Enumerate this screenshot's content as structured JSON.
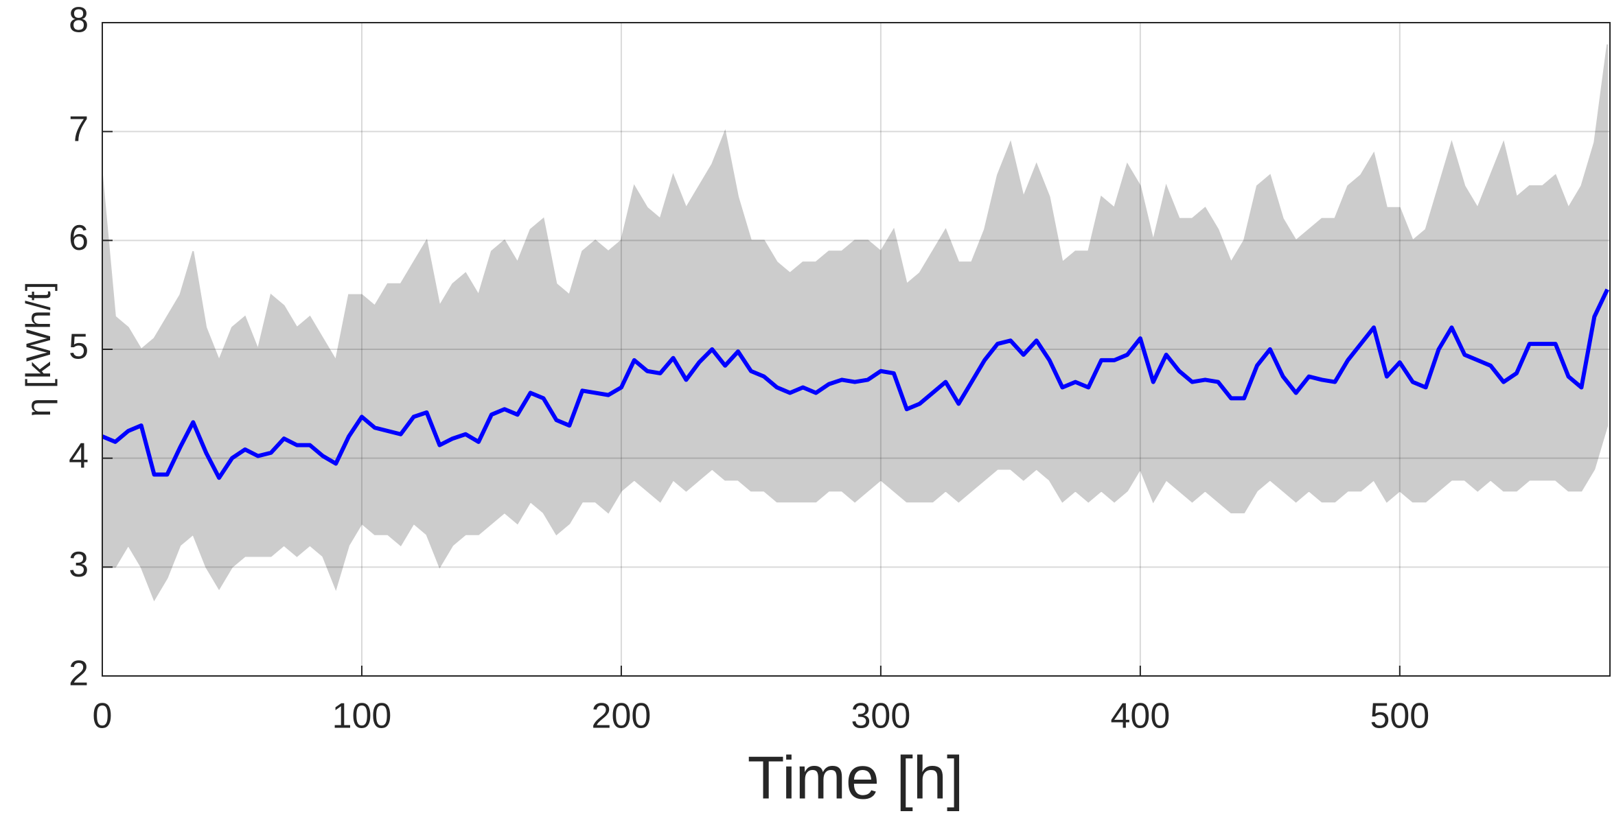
{
  "chart_data": {
    "type": "line",
    "xlabel": "Time [h]",
    "ylabel": "η [kWh/t]",
    "xlim": [
      0,
      581
    ],
    "ylim": [
      2,
      8
    ],
    "xticks": [
      0,
      100,
      200,
      300,
      400,
      500
    ],
    "yticks": [
      2,
      3,
      4,
      5,
      6,
      7,
      8
    ],
    "grid": true,
    "x": [
      0,
      5,
      10,
      15,
      20,
      25,
      30,
      35,
      40,
      45,
      50,
      55,
      60,
      65,
      70,
      75,
      80,
      85,
      90,
      95,
      100,
      105,
      110,
      115,
      120,
      125,
      130,
      135,
      140,
      145,
      150,
      155,
      160,
      165,
      170,
      175,
      180,
      185,
      190,
      195,
      200,
      205,
      210,
      215,
      220,
      225,
      230,
      235,
      240,
      245,
      250,
      255,
      260,
      265,
      270,
      275,
      280,
      285,
      290,
      295,
      300,
      305,
      310,
      315,
      320,
      325,
      330,
      335,
      340,
      345,
      350,
      355,
      360,
      365,
      370,
      375,
      380,
      385,
      390,
      395,
      400,
      405,
      410,
      415,
      420,
      425,
      430,
      435,
      440,
      445,
      450,
      455,
      460,
      465,
      470,
      475,
      480,
      485,
      490,
      495,
      500,
      505,
      510,
      515,
      520,
      525,
      530,
      535,
      540,
      545,
      550,
      555,
      560,
      565,
      570,
      575,
      580
    ],
    "band": {
      "color": "#cccccc",
      "upper": [
        6.6,
        5.3,
        5.2,
        5.0,
        5.1,
        5.3,
        5.5,
        5.9,
        5.2,
        4.9,
        5.2,
        5.3,
        5.0,
        5.5,
        5.4,
        5.2,
        5.3,
        5.1,
        4.9,
        5.5,
        5.5,
        5.4,
        5.6,
        5.6,
        5.8,
        6.0,
        5.4,
        5.6,
        5.7,
        5.5,
        5.9,
        6.0,
        5.8,
        6.1,
        6.2,
        5.6,
        5.5,
        5.9,
        6.0,
        5.9,
        6.0,
        6.5,
        6.3,
        6.2,
        6.6,
        6.3,
        6.5,
        6.7,
        7.0,
        6.4,
        6.0,
        6.0,
        5.8,
        5.7,
        5.8,
        5.8,
        5.9,
        5.9,
        6.0,
        6.0,
        5.9,
        6.1,
        5.6,
        5.7,
        5.9,
        6.1,
        5.8,
        5.8,
        6.1,
        6.6,
        6.9,
        6.4,
        6.7,
        6.4,
        5.8,
        5.9,
        5.9,
        6.4,
        6.3,
        6.7,
        6.5,
        6.0,
        6.5,
        6.2,
        6.2,
        6.3,
        6.1,
        5.8,
        6.0,
        6.5,
        6.6,
        6.2,
        6.0,
        6.1,
        6.2,
        6.2,
        6.5,
        6.6,
        6.8,
        6.3,
        6.3,
        6.0,
        6.1,
        6.5,
        6.9,
        6.5,
        6.3,
        6.6,
        6.9,
        6.4,
        6.5,
        6.5,
        6.6,
        6.3,
        6.5,
        6.9,
        7.8
      ],
      "lower": [
        3.0,
        3.0,
        3.2,
        3.0,
        2.7,
        2.9,
        3.2,
        3.3,
        3.0,
        2.8,
        3.0,
        3.1,
        3.1,
        3.1,
        3.2,
        3.1,
        3.2,
        3.1,
        2.8,
        3.2,
        3.4,
        3.3,
        3.3,
        3.2,
        3.4,
        3.3,
        3.0,
        3.2,
        3.3,
        3.3,
        3.4,
        3.5,
        3.4,
        3.6,
        3.5,
        3.3,
        3.4,
        3.6,
        3.6,
        3.5,
        3.7,
        3.8,
        3.7,
        3.6,
        3.8,
        3.7,
        3.8,
        3.9,
        3.8,
        3.8,
        3.7,
        3.7,
        3.6,
        3.6,
        3.6,
        3.6,
        3.7,
        3.7,
        3.6,
        3.7,
        3.8,
        3.7,
        3.6,
        3.6,
        3.6,
        3.7,
        3.6,
        3.7,
        3.8,
        3.9,
        3.9,
        3.8,
        3.9,
        3.8,
        3.6,
        3.7,
        3.6,
        3.7,
        3.6,
        3.7,
        3.9,
        3.6,
        3.8,
        3.7,
        3.6,
        3.7,
        3.6,
        3.5,
        3.5,
        3.7,
        3.8,
        3.7,
        3.6,
        3.7,
        3.6,
        3.6,
        3.7,
        3.7,
        3.8,
        3.6,
        3.7,
        3.6,
        3.6,
        3.7,
        3.8,
        3.8,
        3.7,
        3.8,
        3.7,
        3.7,
        3.8,
        3.8,
        3.8,
        3.7,
        3.7,
        3.9,
        4.3
      ]
    },
    "series": [
      {
        "color": "#0000ff",
        "values": [
          4.2,
          4.15,
          4.25,
          4.3,
          3.85,
          3.85,
          4.1,
          4.33,
          4.05,
          3.82,
          4.0,
          4.08,
          4.02,
          4.05,
          4.18,
          4.12,
          4.12,
          4.02,
          3.95,
          4.2,
          4.38,
          4.28,
          4.25,
          4.22,
          4.38,
          4.42,
          4.12,
          4.18,
          4.22,
          4.15,
          4.4,
          4.45,
          4.4,
          4.6,
          4.55,
          4.35,
          4.3,
          4.62,
          4.6,
          4.58,
          4.65,
          4.9,
          4.8,
          4.78,
          4.92,
          4.72,
          4.88,
          5.0,
          4.85,
          4.98,
          4.8,
          4.75,
          4.65,
          4.6,
          4.65,
          4.6,
          4.68,
          4.72,
          4.7,
          4.72,
          4.8,
          4.78,
          4.45,
          4.5,
          4.6,
          4.7,
          4.5,
          4.7,
          4.9,
          5.05,
          5.08,
          4.95,
          5.08,
          4.9,
          4.65,
          4.7,
          4.65,
          4.9,
          4.9,
          4.95,
          5.1,
          4.7,
          4.95,
          4.8,
          4.7,
          4.72,
          4.7,
          4.55,
          4.55,
          4.85,
          5.0,
          4.75,
          4.6,
          4.75,
          4.72,
          4.7,
          4.9,
          5.05,
          5.2,
          4.75,
          4.88,
          4.7,
          4.65,
          5.0,
          5.2,
          4.95,
          4.9,
          4.85,
          4.7,
          4.78,
          5.05,
          5.05,
          5.05,
          4.75,
          4.65,
          5.3,
          5.55
        ]
      }
    ]
  }
}
